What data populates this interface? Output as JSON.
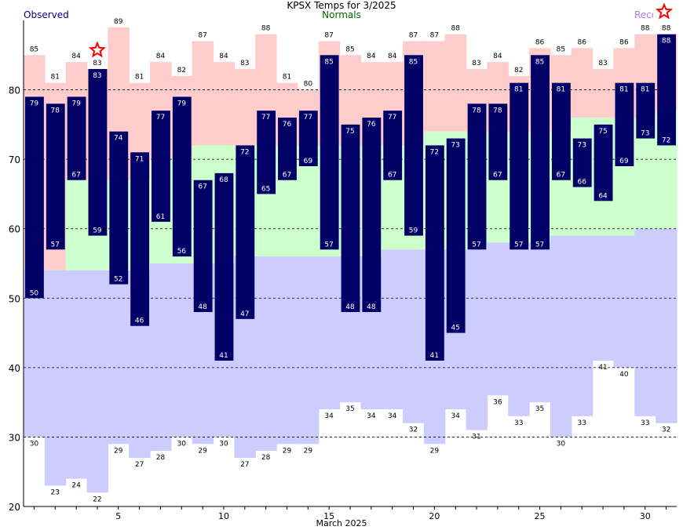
{
  "chart_data": {
    "type": "bar",
    "title": "KPSX Temps for 3/2025",
    "xlabel": "March 2025",
    "ylabel": "",
    "legend": {
      "observed": "Observed",
      "normals": "Normals",
      "records": "Records"
    },
    "ylim": [
      20,
      90
    ],
    "xlim": [
      1,
      31
    ],
    "y_ticks": [
      20,
      30,
      40,
      50,
      60,
      70,
      80
    ],
    "x_ticks": [
      5,
      10,
      15,
      20,
      25,
      30
    ],
    "grid": true,
    "days": [
      1,
      2,
      3,
      4,
      5,
      6,
      7,
      8,
      9,
      10,
      11,
      12,
      13,
      14,
      15,
      16,
      17,
      18,
      19,
      20,
      21,
      22,
      23,
      24,
      25,
      26,
      27,
      28,
      29,
      30,
      31
    ],
    "observed_high": [
      79,
      78,
      79,
      83,
      74,
      71,
      77,
      79,
      67,
      68,
      72,
      77,
      76,
      77,
      85,
      75,
      76,
      77,
      85,
      72,
      73,
      78,
      78,
      81,
      85,
      81,
      73,
      75,
      81,
      81,
      88
    ],
    "observed_low": [
      50,
      57,
      67,
      59,
      52,
      46,
      61,
      56,
      48,
      41,
      47,
      65,
      67,
      69,
      57,
      48,
      48,
      67,
      59,
      41,
      45,
      57,
      67,
      57,
      57,
      67,
      66,
      64,
      69,
      73,
      72
    ],
    "normal_high": [
      80,
      80,
      80,
      80,
      80,
      80,
      80,
      80,
      80,
      80,
      80,
      80,
      80,
      80,
      80,
      80,
      80,
      80,
      80,
      80,
      80,
      80,
      80,
      80,
      80,
      80,
      80,
      80,
      80,
      80,
      80
    ],
    "normal_high_mid": [
      54,
      54,
      67,
      67,
      67,
      67,
      70,
      70,
      72,
      72,
      72,
      72,
      72,
      72,
      72,
      72,
      72,
      72,
      72,
      74,
      74,
      74,
      74,
      74,
      74,
      74,
      76,
      76,
      76,
      76,
      77
    ],
    "normal_low": [
      54,
      54,
      54,
      54,
      54,
      54,
      55,
      55,
      55,
      55,
      56,
      56,
      56,
      56,
      56,
      56,
      56,
      57,
      57,
      57,
      57,
      57,
      58,
      58,
      58,
      59,
      59,
      59,
      59,
      60,
      60
    ],
    "record_high": [
      85,
      81,
      84,
      83,
      89,
      81,
      84,
      82,
      87,
      84,
      83,
      88,
      81,
      80,
      87,
      85,
      84,
      84,
      87,
      87,
      88,
      83,
      84,
      82,
      86,
      85,
      86,
      83,
      86,
      88,
      88
    ],
    "record_low": [
      30,
      23,
      24,
      22,
      29,
      27,
      28,
      30,
      29,
      30,
      27,
      28,
      29,
      29,
      34,
      35,
      34,
      34,
      32,
      29,
      34,
      31,
      36,
      33,
      35,
      30,
      33,
      41,
      40,
      33,
      32
    ],
    "record_set_days": [
      4,
      31
    ],
    "colors": {
      "observed_bar": "#000066",
      "record_high_band": "#ffcccc",
      "normal_band": "#ccffcc",
      "record_low_band": "#ccccff",
      "record_star": "#ff0000",
      "grid": "#000000"
    }
  }
}
